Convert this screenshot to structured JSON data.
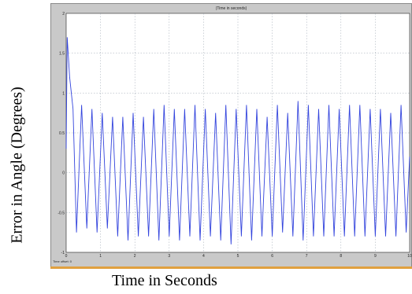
{
  "scope": {
    "title": "(Time in seconds)",
    "offset_label": "Time offset:  0"
  },
  "labels": {
    "ylabel": "Error in Angle (Degrees)",
    "xlabel": "Time in Seconds"
  },
  "colors": {
    "plot_bg": "#ffffff",
    "frame": "#c9c9c9",
    "grid": "#9aa4b0",
    "line": "#3344dd",
    "accent_strip": "#e0a040"
  },
  "chart_data": {
    "type": "line",
    "title": "(Time in seconds)",
    "xlabel": "Time in Seconds",
    "ylabel": "Error in Angle (Degrees)",
    "xlim": [
      0,
      10
    ],
    "ylim": [
      -1,
      2
    ],
    "grid": true,
    "xticks": [
      "0",
      "1",
      "2",
      "3",
      "4",
      "5",
      "6",
      "7",
      "8",
      "9",
      "10"
    ],
    "yticks": [
      "2",
      "1.5",
      "1",
      "0.5",
      "0",
      "-0.5",
      "-1"
    ],
    "ytick_values": [
      2,
      1.5,
      1,
      0.5,
      0,
      -0.5,
      -1
    ],
    "series": [
      {
        "x": [
          0,
          0.03,
          0.1,
          0.2,
          0.3,
          0.45,
          0.6,
          0.75,
          0.9,
          1.05,
          1.2,
          1.35,
          1.5,
          1.65,
          1.8,
          1.95,
          2.1,
          2.25,
          2.4,
          2.55,
          2.7,
          2.85,
          3.0,
          3.15,
          3.3,
          3.45,
          3.6,
          3.75,
          3.9,
          4.05,
          4.2,
          4.35,
          4.5,
          4.65,
          4.8,
          4.95,
          5.1,
          5.25,
          5.4,
          5.55,
          5.7,
          5.85,
          6.0,
          6.15,
          6.3,
          6.45,
          6.6,
          6.75,
          6.9,
          7.05,
          7.2,
          7.35,
          7.5,
          7.65,
          7.8,
          7.95,
          8.1,
          8.25,
          8.4,
          8.55,
          8.7,
          8.85,
          9.0,
          9.15,
          9.3,
          9.45,
          9.6,
          9.75,
          9.9,
          10.0
        ],
        "values": [
          0.3,
          1.7,
          1.2,
          0.8,
          -0.75,
          0.85,
          -0.7,
          0.8,
          -0.75,
          0.75,
          -0.7,
          0.7,
          -0.8,
          0.7,
          -0.85,
          0.75,
          -0.8,
          0.7,
          -0.8,
          0.8,
          -0.85,
          0.85,
          -0.8,
          0.8,
          -0.85,
          0.8,
          -0.8,
          0.85,
          -0.85,
          0.8,
          -0.8,
          0.75,
          -0.85,
          0.85,
          -0.9,
          0.8,
          -0.8,
          0.85,
          -0.85,
          0.8,
          -0.8,
          0.7,
          -0.8,
          0.85,
          -0.75,
          0.75,
          -0.8,
          0.9,
          -0.85,
          0.85,
          -0.8,
          0.8,
          -0.8,
          0.85,
          -0.8,
          0.8,
          -0.8,
          0.85,
          -0.8,
          0.85,
          -0.8,
          0.8,
          -0.8,
          0.8,
          -0.8,
          0.75,
          -0.8,
          0.85,
          -0.75,
          0.2
        ]
      }
    ]
  }
}
